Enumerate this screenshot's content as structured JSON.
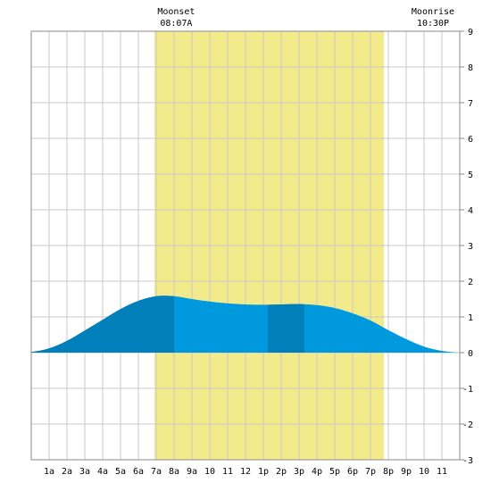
{
  "chart_data": {
    "type": "area",
    "ylim": [
      -3,
      9
    ],
    "yticks": [
      -3,
      -2,
      -1,
      0,
      1,
      2,
      3,
      4,
      5,
      6,
      7,
      8,
      9
    ],
    "x_hours_range": [
      0,
      24
    ],
    "x_ticks": [
      {
        "hour": 1,
        "label": "1a"
      },
      {
        "hour": 2,
        "label": "2a"
      },
      {
        "hour": 3,
        "label": "3a"
      },
      {
        "hour": 4,
        "label": "4a"
      },
      {
        "hour": 5,
        "label": "5a"
      },
      {
        "hour": 6,
        "label": "6a"
      },
      {
        "hour": 7,
        "label": "7a"
      },
      {
        "hour": 8,
        "label": "8a"
      },
      {
        "hour": 9,
        "label": "9a"
      },
      {
        "hour": 10,
        "label": "10"
      },
      {
        "hour": 11,
        "label": "11"
      },
      {
        "hour": 12,
        "label": "12"
      },
      {
        "hour": 13,
        "label": "1p"
      },
      {
        "hour": 14,
        "label": "2p"
      },
      {
        "hour": 15,
        "label": "3p"
      },
      {
        "hour": 16,
        "label": "4p"
      },
      {
        "hour": 17,
        "label": "5p"
      },
      {
        "hour": 18,
        "label": "6p"
      },
      {
        "hour": 19,
        "label": "7p"
      },
      {
        "hour": 20,
        "label": "8p"
      },
      {
        "hour": 21,
        "label": "9p"
      },
      {
        "hour": 22,
        "label": "10"
      },
      {
        "hour": 23,
        "label": "11"
      }
    ],
    "daylight": {
      "start_hour": 6.9,
      "end_hour": 19.75
    },
    "highlight_bands": [
      {
        "start_hour": 0,
        "end_hour": 8.0
      },
      {
        "start_hour": 13.25,
        "end_hour": 15.3
      }
    ],
    "series": [
      {
        "x": [
          0,
          1,
          2,
          3,
          4,
          5,
          6,
          7,
          8,
          9,
          10,
          11,
          12,
          13,
          14,
          15,
          16,
          17,
          18,
          19,
          20,
          21,
          22,
          23,
          24
        ],
        "values": [
          0.02,
          0.12,
          0.33,
          0.62,
          0.92,
          1.22,
          1.45,
          1.58,
          1.58,
          1.5,
          1.43,
          1.38,
          1.35,
          1.34,
          1.35,
          1.36,
          1.33,
          1.25,
          1.1,
          0.9,
          0.63,
          0.38,
          0.17,
          0.05,
          0.0
        ]
      }
    ],
    "annotations": [
      {
        "title": "Moonset",
        "time": "08:07A",
        "hour": 8.12
      },
      {
        "title": "Moonrise",
        "time": "10:30P",
        "hour": 22.5
      }
    ],
    "grid": true,
    "colors": {
      "daylight": "#f3eb8b",
      "fill": "#0099dd",
      "fill_dark": "#007fbb",
      "grid": "#c8c8c8",
      "frame": "#000000"
    }
  }
}
